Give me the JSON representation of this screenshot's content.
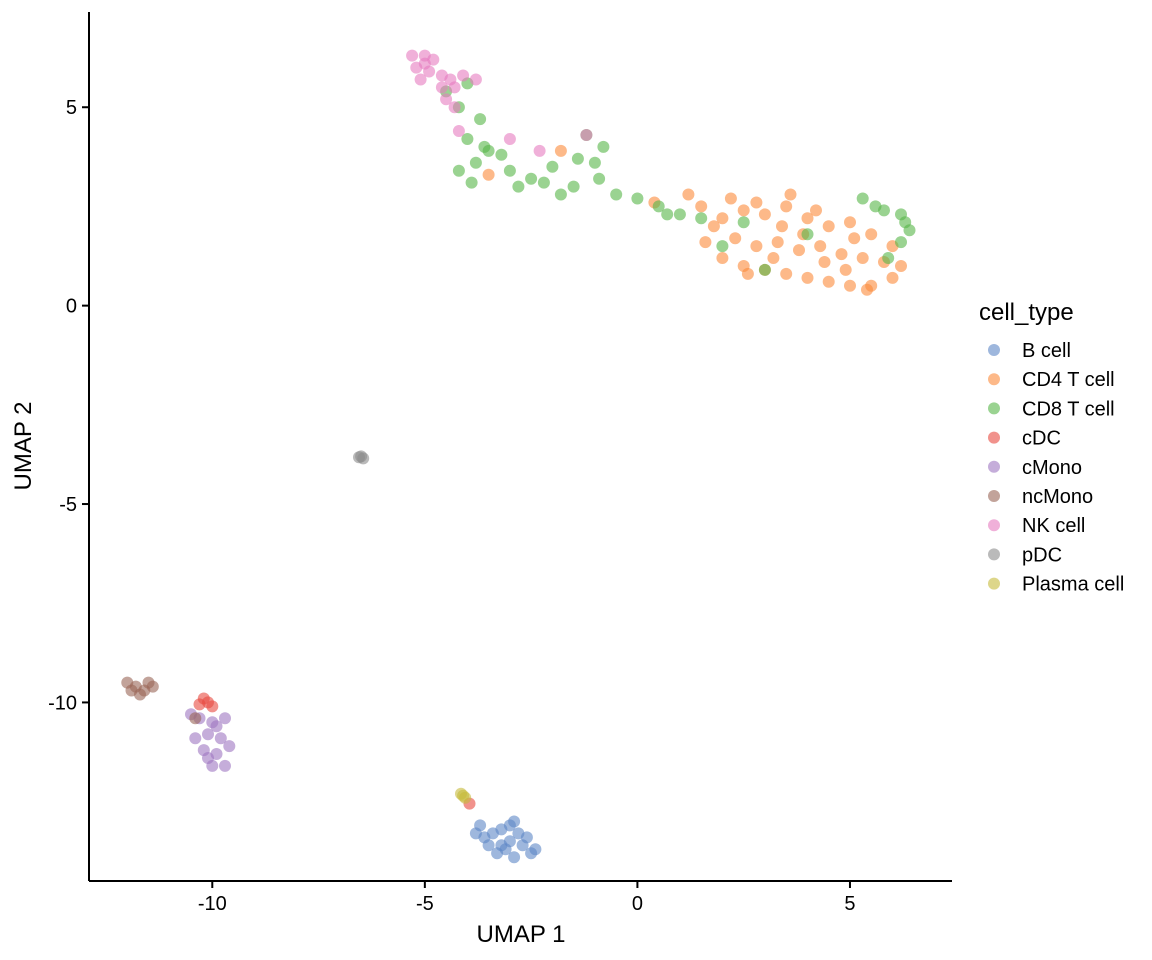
{
  "chart_data": {
    "type": "scatter",
    "xlabel": "UMAP 1",
    "ylabel": "UMAP 2",
    "xlim": [
      -12.9,
      7.4
    ],
    "ylim": [
      -14.5,
      7.4
    ],
    "xticks": [
      -10,
      -5,
      0,
      5
    ],
    "xtick_labels": [
      "-10",
      "-5",
      "0",
      "5"
    ],
    "yticks": [
      -10,
      -5,
      0,
      5
    ],
    "ytick_labels": [
      "-10",
      "-5",
      "0",
      "5"
    ],
    "grid": false,
    "legend": {
      "title": "cell_type",
      "position": "right"
    },
    "series": [
      {
        "name": "B cell",
        "color": "#5d87c6",
        "points": [
          [
            -3.2,
            -13.2
          ],
          [
            -2.9,
            -13.0
          ],
          [
            -3.6,
            -13.4
          ],
          [
            -3.0,
            -13.5
          ],
          [
            -2.7,
            -13.6
          ],
          [
            -2.5,
            -13.8
          ],
          [
            -3.4,
            -13.3
          ],
          [
            -3.8,
            -13.3
          ],
          [
            -2.8,
            -13.3
          ],
          [
            -3.1,
            -13.7
          ],
          [
            -3.5,
            -13.6
          ],
          [
            -2.6,
            -13.4
          ],
          [
            -3.0,
            -13.1
          ],
          [
            -3.3,
            -13.8
          ],
          [
            -2.9,
            -13.9
          ],
          [
            -3.7,
            -13.1
          ],
          [
            -2.4,
            -13.7
          ],
          [
            -3.2,
            -13.6
          ]
        ]
      },
      {
        "name": "CD4 T cell",
        "color": "#fc8a3b",
        "points": [
          [
            1.5,
            2.5
          ],
          [
            2.0,
            2.2
          ],
          [
            2.5,
            2.4
          ],
          [
            3.0,
            2.3
          ],
          [
            3.5,
            2.5
          ],
          [
            4.0,
            2.2
          ],
          [
            4.5,
            2.0
          ],
          [
            5.0,
            2.1
          ],
          [
            5.5,
            1.8
          ],
          [
            6.0,
            1.5
          ],
          [
            1.6,
            1.6
          ],
          [
            2.0,
            1.2
          ],
          [
            2.5,
            1.0
          ],
          [
            3.0,
            0.9
          ],
          [
            3.5,
            0.8
          ],
          [
            4.0,
            0.7
          ],
          [
            4.5,
            0.6
          ],
          [
            5.0,
            0.5
          ],
          [
            5.5,
            0.5
          ],
          [
            6.0,
            0.7
          ],
          [
            1.8,
            2.0
          ],
          [
            2.3,
            1.7
          ],
          [
            2.8,
            1.5
          ],
          [
            3.3,
            1.6
          ],
          [
            3.8,
            1.4
          ],
          [
            4.3,
            1.5
          ],
          [
            4.8,
            1.3
          ],
          [
            5.3,
            1.2
          ],
          [
            5.8,
            1.1
          ],
          [
            6.2,
            1.0
          ],
          [
            2.2,
            2.7
          ],
          [
            2.8,
            2.6
          ],
          [
            3.4,
            2.0
          ],
          [
            3.9,
            1.8
          ],
          [
            4.4,
            1.1
          ],
          [
            4.9,
            0.9
          ],
          [
            5.4,
            0.4
          ],
          [
            2.6,
            0.8
          ],
          [
            3.2,
            1.2
          ],
          [
            4.2,
            2.4
          ],
          [
            1.2,
            2.8
          ],
          [
            -1.8,
            3.9
          ],
          [
            -3.5,
            3.3
          ],
          [
            0.4,
            2.6
          ],
          [
            5.1,
            1.7
          ],
          [
            3.6,
            2.8
          ]
        ]
      },
      {
        "name": "CD8 T cell",
        "color": "#57b547",
        "points": [
          [
            -4.0,
            4.2
          ],
          [
            -3.8,
            3.6
          ],
          [
            -3.5,
            3.9
          ],
          [
            -3.0,
            3.4
          ],
          [
            -2.5,
            3.2
          ],
          [
            -2.0,
            3.5
          ],
          [
            -1.5,
            3.0
          ],
          [
            -1.0,
            3.6
          ],
          [
            -0.8,
            4.0
          ],
          [
            -1.2,
            4.3
          ],
          [
            -0.5,
            2.8
          ],
          [
            0.0,
            2.7
          ],
          [
            0.5,
            2.5
          ],
          [
            1.0,
            2.3
          ],
          [
            -4.2,
            3.4
          ],
          [
            -3.2,
            3.8
          ],
          [
            -2.8,
            3.0
          ],
          [
            -2.2,
            3.1
          ],
          [
            -1.8,
            2.8
          ],
          [
            -1.4,
            3.7
          ],
          [
            -0.9,
            3.2
          ],
          [
            -3.9,
            3.1
          ],
          [
            -4.2,
            5.0
          ],
          [
            -3.7,
            4.7
          ],
          [
            -4.5,
            5.4
          ],
          [
            -4.0,
            5.6
          ],
          [
            -3.6,
            4.0
          ],
          [
            5.8,
            2.4
          ],
          [
            6.2,
            2.3
          ],
          [
            6.4,
            1.9
          ],
          [
            6.2,
            1.6
          ],
          [
            5.9,
            1.2
          ],
          [
            6.3,
            2.1
          ],
          [
            5.6,
            2.5
          ],
          [
            5.3,
            2.7
          ],
          [
            3.0,
            0.9
          ],
          [
            2.0,
            1.5
          ],
          [
            2.5,
            2.1
          ],
          [
            1.5,
            2.2
          ],
          [
            0.7,
            2.3
          ],
          [
            4.0,
            1.8
          ]
        ]
      },
      {
        "name": "cDC",
        "color": "#e84a3f",
        "points": [
          [
            -10.2,
            -9.9
          ],
          [
            -10.1,
            -10.0
          ],
          [
            -10.3,
            -10.05
          ],
          [
            -10.0,
            -10.1
          ],
          [
            -3.95,
            -12.55
          ]
        ]
      },
      {
        "name": "cMono",
        "color": "#9f77c2",
        "points": [
          [
            -10.3,
            -10.4
          ],
          [
            -10.0,
            -10.5
          ],
          [
            -9.7,
            -10.4
          ],
          [
            -10.1,
            -10.8
          ],
          [
            -9.8,
            -10.9
          ],
          [
            -10.2,
            -11.2
          ],
          [
            -9.9,
            -11.3
          ],
          [
            -10.0,
            -11.6
          ],
          [
            -9.7,
            -11.6
          ],
          [
            -10.1,
            -11.4
          ],
          [
            -9.6,
            -11.1
          ],
          [
            -10.4,
            -10.9
          ],
          [
            -9.9,
            -10.6
          ],
          [
            -10.5,
            -10.3
          ]
        ]
      },
      {
        "name": "ncMono",
        "color": "#9a6557",
        "points": [
          [
            -12.0,
            -9.5
          ],
          [
            -11.8,
            -9.6
          ],
          [
            -11.6,
            -9.7
          ],
          [
            -11.4,
            -9.6
          ],
          [
            -11.7,
            -9.8
          ],
          [
            -11.9,
            -9.7
          ],
          [
            -11.5,
            -9.5
          ],
          [
            -10.4,
            -10.4
          ]
        ]
      },
      {
        "name": "NK cell",
        "color": "#e67cc0",
        "points": [
          [
            -5.3,
            6.3
          ],
          [
            -5.0,
            6.3
          ],
          [
            -4.8,
            6.2
          ],
          [
            -5.2,
            6.0
          ],
          [
            -4.9,
            5.9
          ],
          [
            -4.6,
            5.8
          ],
          [
            -5.1,
            5.7
          ],
          [
            -4.4,
            5.7
          ],
          [
            -4.1,
            5.8
          ],
          [
            -3.8,
            5.7
          ],
          [
            -4.3,
            5.5
          ],
          [
            -4.6,
            5.5
          ],
          [
            -5.0,
            6.1
          ],
          [
            -4.3,
            5.0
          ],
          [
            -4.2,
            4.4
          ],
          [
            -3.0,
            4.2
          ],
          [
            -2.3,
            3.9
          ],
          [
            -1.2,
            4.3
          ],
          [
            -4.5,
            5.2
          ]
        ]
      },
      {
        "name": "pDC",
        "color": "#8c8c8c",
        "points": [
          [
            -6.5,
            -3.8
          ],
          [
            -6.45,
            -3.85
          ],
          [
            -6.55,
            -3.82
          ]
        ]
      },
      {
        "name": "Plasma cell",
        "color": "#c6bb3c",
        "points": [
          [
            -4.15,
            -12.3
          ],
          [
            -4.1,
            -12.35
          ],
          [
            -4.05,
            -12.4
          ]
        ]
      }
    ]
  }
}
